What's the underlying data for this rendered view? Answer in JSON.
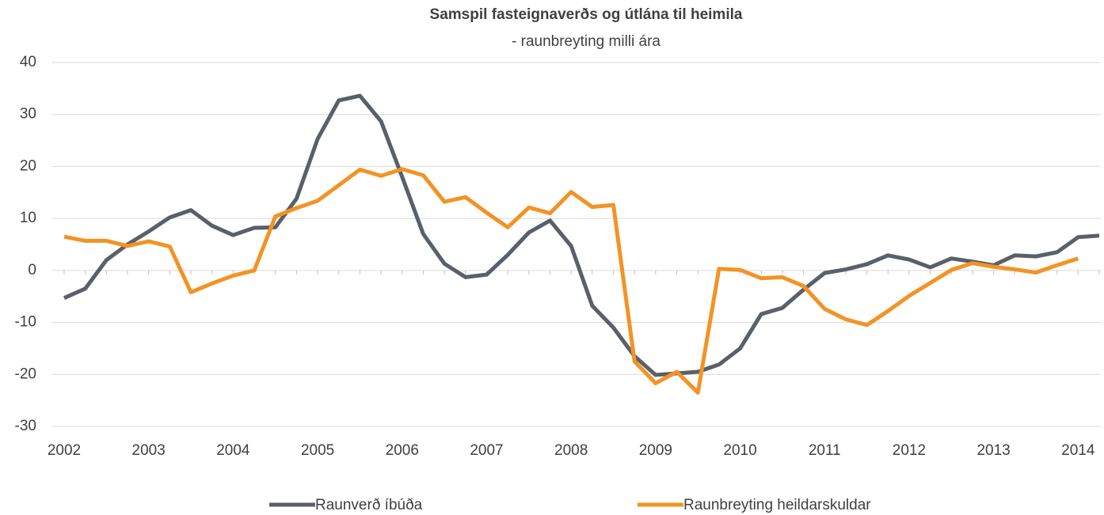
{
  "chart_data": {
    "type": "line",
    "title": "Samspil fasteignaverðs og útlána til heimila",
    "subtitle": "- raunbreyting milli ára",
    "categories": [
      "2002",
      null,
      null,
      null,
      "2003",
      null,
      null,
      null,
      "2004",
      null,
      null,
      null,
      "2005",
      null,
      null,
      null,
      "2006",
      null,
      null,
      null,
      "2007",
      null,
      null,
      null,
      "2008",
      null,
      null,
      null,
      "2009",
      null,
      null,
      null,
      "2010",
      null,
      null,
      null,
      "2011",
      null,
      null,
      null,
      "2012",
      null,
      null,
      null,
      "2013",
      null,
      null,
      null,
      "2014",
      null
    ],
    "series": [
      {
        "name": "Raunverð íbúða",
        "color": "#596069",
        "values": [
          -5.3,
          -3.5,
          2,
          5,
          7.5,
          10.2,
          11.6,
          8.6,
          6.8,
          8.2,
          8.3,
          13.8,
          25.3,
          32.7,
          33.6,
          28.7,
          18,
          7,
          1.3,
          -1.3,
          -0.8,
          3,
          7.3,
          9.6,
          4.7,
          -6.8,
          -11,
          -16.5,
          -20.1,
          -19.8,
          -19.5,
          -18.1,
          -15,
          -8.4,
          -7.2,
          -3.7,
          -0.5,
          0.2,
          1.2,
          2.9,
          2.1,
          0.6,
          2.3,
          1.7,
          1.0,
          2.9,
          2.7,
          3.5,
          6.4,
          6.7
        ]
      },
      {
        "name": "Raunbreyting heildarskuldar",
        "color": "#f39325",
        "values": [
          6.5,
          5.7,
          5.7,
          4.7,
          5.6,
          4.6,
          -4.2,
          -2.5,
          -1,
          0,
          10.4,
          12,
          13.4,
          16.4,
          19.4,
          18.2,
          19.5,
          18.3,
          13.2,
          14.1,
          11.1,
          8.3,
          12.1,
          11,
          15.1,
          12.2,
          12.6,
          -17.5,
          -21.7,
          -19.5,
          -23.5,
          0.3,
          0.1,
          -1.5,
          -1.3,
          -3,
          -7.4,
          -9.4,
          -10.5,
          -7.8,
          -4.9,
          -2.4,
          0.1,
          1.4,
          0.7,
          0.2,
          -0.4,
          1,
          2.3,
          null
        ]
      }
    ],
    "ylim": [
      -30,
      40
    ],
    "yticks": [
      -30,
      -20,
      -10,
      0,
      10,
      20,
      30,
      40
    ],
    "grid": true
  }
}
